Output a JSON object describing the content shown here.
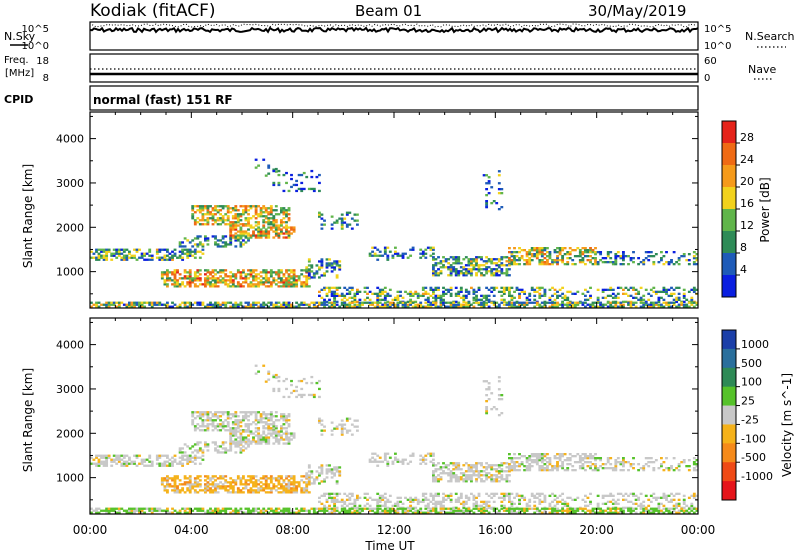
{
  "header": {
    "station": "Kodiak (fitACF)",
    "beam": "Beam 01",
    "date": "30/May/2019"
  },
  "noise_panel": {
    "left_label": "N.Sky",
    "right_label": "N.Search",
    "left_ticks": [
      "10^5",
      "10^0"
    ],
    "right_ticks": [
      "10^5",
      "10^0"
    ]
  },
  "freq_panel": {
    "left_label_line1": "Freq.",
    "left_label_line2": "[MHz]",
    "right_label": "Nave",
    "left_ticks": [
      "18",
      "8"
    ],
    "right_ticks": [
      "60",
      "0"
    ]
  },
  "cpid": {
    "label": "CPID",
    "mode": "normal (fast) 151 RF"
  },
  "x_axis": {
    "title": "Time UT",
    "ticks": [
      "00:00",
      "04:00",
      "08:00",
      "12:00",
      "16:00",
      "20:00",
      "00:00"
    ]
  },
  "chart_data": [
    {
      "type": "heatmap",
      "title": "",
      "xlabel": "Time UT",
      "ylabel": "Slant Range [km]",
      "x_ticks": [
        "00:00",
        "04:00",
        "08:00",
        "12:00",
        "16:00",
        "20:00",
        "00:00"
      ],
      "y_ticks": [
        1000,
        2000,
        3000,
        4000
      ],
      "ylim": [
        180,
        4600
      ],
      "colorbar": {
        "label": "Power [dB]",
        "ticks": [
          "4",
          "8",
          "12",
          "16",
          "20",
          "24",
          "28"
        ],
        "colors": [
          "#0a1fe0",
          "#1e5bb8",
          "#2e8b57",
          "#60b54a",
          "#f2d21c",
          "#f59a1a",
          "#ef6a14",
          "#e5231a"
        ]
      }
    },
    {
      "type": "heatmap",
      "title": "",
      "xlabel": "Time UT",
      "ylabel": "Slant Range [km]",
      "x_ticks": [
        "00:00",
        "04:00",
        "08:00",
        "12:00",
        "16:00",
        "20:00",
        "00:00"
      ],
      "y_ticks": [
        1000,
        2000,
        3000,
        4000
      ],
      "ylim": [
        180,
        4600
      ],
      "colorbar": {
        "label": "Velocity [m s^-1]",
        "ticks": [
          "1000",
          "500",
          "100",
          "25",
          "-25",
          "-100",
          "-500",
          "-1000"
        ],
        "colors": [
          "#1b3fa8",
          "#2a6f9c",
          "#2e8a56",
          "#56c22a",
          "#c8c8c8",
          "#f5b21a",
          "#f58a1a",
          "#ef4a16",
          "#e5141a"
        ]
      }
    }
  ]
}
